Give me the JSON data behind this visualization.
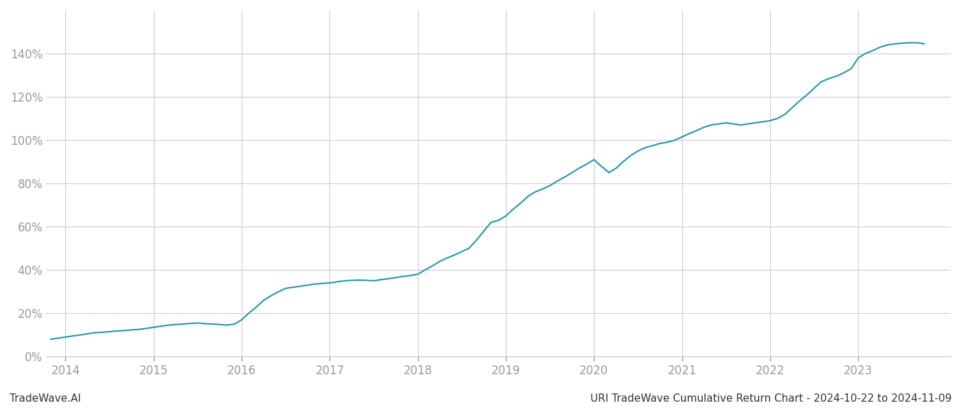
{
  "title": "URI TradeWave Cumulative Return Chart - 2024-10-22 to 2024-11-09",
  "watermark": "TradeWave.AI",
  "line_color": "#2196a8",
  "background_color": "#ffffff",
  "grid_color": "#cccccc",
  "x_years": [
    2014,
    2015,
    2016,
    2017,
    2018,
    2019,
    2020,
    2021,
    2022,
    2023
  ],
  "x_data": [
    2013.83,
    2013.92,
    2014.0,
    2014.08,
    2014.17,
    2014.25,
    2014.33,
    2014.42,
    2014.5,
    2014.58,
    2014.67,
    2014.75,
    2014.83,
    2014.92,
    2015.0,
    2015.08,
    2015.17,
    2015.25,
    2015.33,
    2015.42,
    2015.5,
    2015.58,
    2015.67,
    2015.75,
    2015.83,
    2015.92,
    2016.0,
    2016.08,
    2016.17,
    2016.25,
    2016.33,
    2016.42,
    2016.5,
    2016.58,
    2016.67,
    2016.75,
    2016.83,
    2016.92,
    2017.0,
    2017.08,
    2017.17,
    2017.25,
    2017.33,
    2017.42,
    2017.5,
    2017.58,
    2017.67,
    2017.75,
    2017.83,
    2017.92,
    2018.0,
    2018.08,
    2018.17,
    2018.25,
    2018.33,
    2018.42,
    2018.5,
    2018.58,
    2018.67,
    2018.75,
    2018.83,
    2018.92,
    2019.0,
    2019.08,
    2019.17,
    2019.25,
    2019.33,
    2019.42,
    2019.5,
    2019.58,
    2019.67,
    2019.75,
    2019.83,
    2019.92,
    2020.0,
    2020.08,
    2020.17,
    2020.25,
    2020.33,
    2020.42,
    2020.5,
    2020.58,
    2020.67,
    2020.75,
    2020.83,
    2020.92,
    2021.0,
    2021.08,
    2021.17,
    2021.25,
    2021.33,
    2021.42,
    2021.5,
    2021.58,
    2021.67,
    2021.75,
    2021.83,
    2021.92,
    2022.0,
    2022.08,
    2022.17,
    2022.25,
    2022.33,
    2022.42,
    2022.5,
    2022.58,
    2022.67,
    2022.75,
    2022.83,
    2022.92,
    2023.0,
    2023.08,
    2023.17,
    2023.25,
    2023.33,
    2023.42,
    2023.5,
    2023.58,
    2023.67,
    2023.75
  ],
  "y_data": [
    8.0,
    8.5,
    9.0,
    9.5,
    10.0,
    10.5,
    11.0,
    11.2,
    11.5,
    11.8,
    12.0,
    12.3,
    12.5,
    13.0,
    13.5,
    14.0,
    14.5,
    14.8,
    15.0,
    15.3,
    15.5,
    15.2,
    15.0,
    14.8,
    14.5,
    15.0,
    17.0,
    20.0,
    23.0,
    26.0,
    28.0,
    30.0,
    31.5,
    32.0,
    32.5,
    33.0,
    33.5,
    33.8,
    34.0,
    34.5,
    35.0,
    35.2,
    35.3,
    35.2,
    35.0,
    35.5,
    36.0,
    36.5,
    37.0,
    37.5,
    38.0,
    40.0,
    42.0,
    44.0,
    45.5,
    47.0,
    48.5,
    50.0,
    54.0,
    58.0,
    62.0,
    63.0,
    65.0,
    68.0,
    71.0,
    74.0,
    76.0,
    77.5,
    79.0,
    81.0,
    83.0,
    85.0,
    87.0,
    89.0,
    91.0,
    88.0,
    85.0,
    87.0,
    90.0,
    93.0,
    95.0,
    96.5,
    97.5,
    98.5,
    99.0,
    100.0,
    101.5,
    103.0,
    104.5,
    106.0,
    107.0,
    107.5,
    108.0,
    107.5,
    107.0,
    107.5,
    108.0,
    108.5,
    109.0,
    110.0,
    112.0,
    115.0,
    118.0,
    121.0,
    124.0,
    127.0,
    128.5,
    129.5,
    131.0,
    133.0,
    138.0,
    140.0,
    141.5,
    143.0,
    144.0,
    144.5,
    144.8,
    145.0,
    145.0,
    144.5
  ],
  "ylim": [
    0,
    160
  ],
  "yticks": [
    0,
    20,
    40,
    60,
    80,
    100,
    120,
    140
  ],
  "title_fontsize": 11,
  "watermark_fontsize": 11,
  "tick_color": "#999999",
  "spine_color": "#cccccc"
}
